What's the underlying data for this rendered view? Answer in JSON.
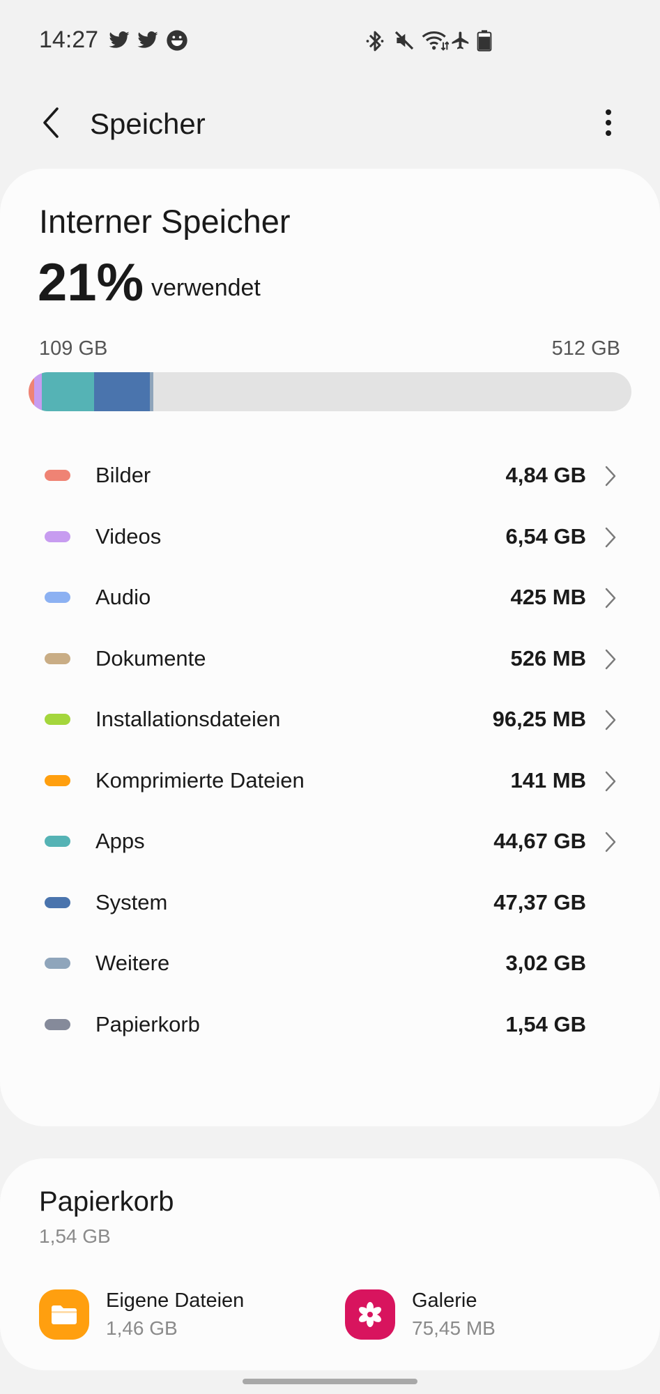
{
  "status_bar": {
    "time": "14:27",
    "left_icons": [
      "twitter-icon",
      "twitter-icon",
      "emoji-app-icon"
    ],
    "right_icons": [
      "bluetooth-icon",
      "mute-icon",
      "wifi-icon",
      "airplane-icon",
      "battery-icon"
    ]
  },
  "app_bar": {
    "title": "Speicher",
    "back_icon": "back-arrow-icon",
    "menu_icon": "more-vertical-icon"
  },
  "storage": {
    "title": "Interner Speicher",
    "percent": "21%",
    "used_label": "verwendet",
    "used_total": "109 GB",
    "capacity": "512 GB",
    "bar_fill": [
      {
        "name": "Bilder",
        "fraction": 0.009,
        "color": "#ef8374"
      },
      {
        "name": "Videos",
        "fraction": 0.013,
        "color": "#c79cf0"
      },
      {
        "name": "Apps",
        "fraction": 0.087,
        "color": "#55b3b5"
      },
      {
        "name": "System",
        "fraction": 0.092,
        "color": "#4a74ad"
      },
      {
        "name": "Weitere",
        "fraction": 0.006,
        "color": "#8fa5bb"
      }
    ]
  },
  "categories": [
    {
      "label": "Bilder",
      "value": "4,84 GB",
      "color": "#ef8374",
      "chevron": true
    },
    {
      "label": "Videos",
      "value": "6,54 GB",
      "color": "#c79cf0",
      "chevron": true
    },
    {
      "label": "Audio",
      "value": "425 MB",
      "color": "#8cb1f2",
      "chevron": true
    },
    {
      "label": "Dokumente",
      "value": "526 MB",
      "color": "#c9ad85",
      "chevron": true
    },
    {
      "label": "Installationsdateien",
      "value": "96,25 MB",
      "color": "#a4d63c",
      "chevron": true
    },
    {
      "label": "Komprimierte Dateien",
      "value": "141 MB",
      "color": "#ff9f0f",
      "chevron": true
    },
    {
      "label": "Apps",
      "value": "44,67 GB",
      "color": "#55b3b5",
      "chevron": true
    },
    {
      "label": "System",
      "value": "47,37 GB",
      "color": "#4a74ad",
      "chevron": false
    },
    {
      "label": "Weitere",
      "value": "3,02 GB",
      "color": "#8fa5bb",
      "chevron": false
    },
    {
      "label": "Papierkorb",
      "value": "1,54 GB",
      "color": "#858a9a",
      "chevron": false
    }
  ],
  "trash": {
    "title": "Papierkorb",
    "size": "1,54 GB",
    "items": [
      {
        "name": "Eigene Dateien",
        "size": "1,46 GB",
        "icon": "folder-icon",
        "color": "#ff9f0f"
      },
      {
        "name": "Galerie",
        "size": "75,45 MB",
        "icon": "gallery-flower-icon",
        "color": "#d8145e"
      }
    ]
  }
}
